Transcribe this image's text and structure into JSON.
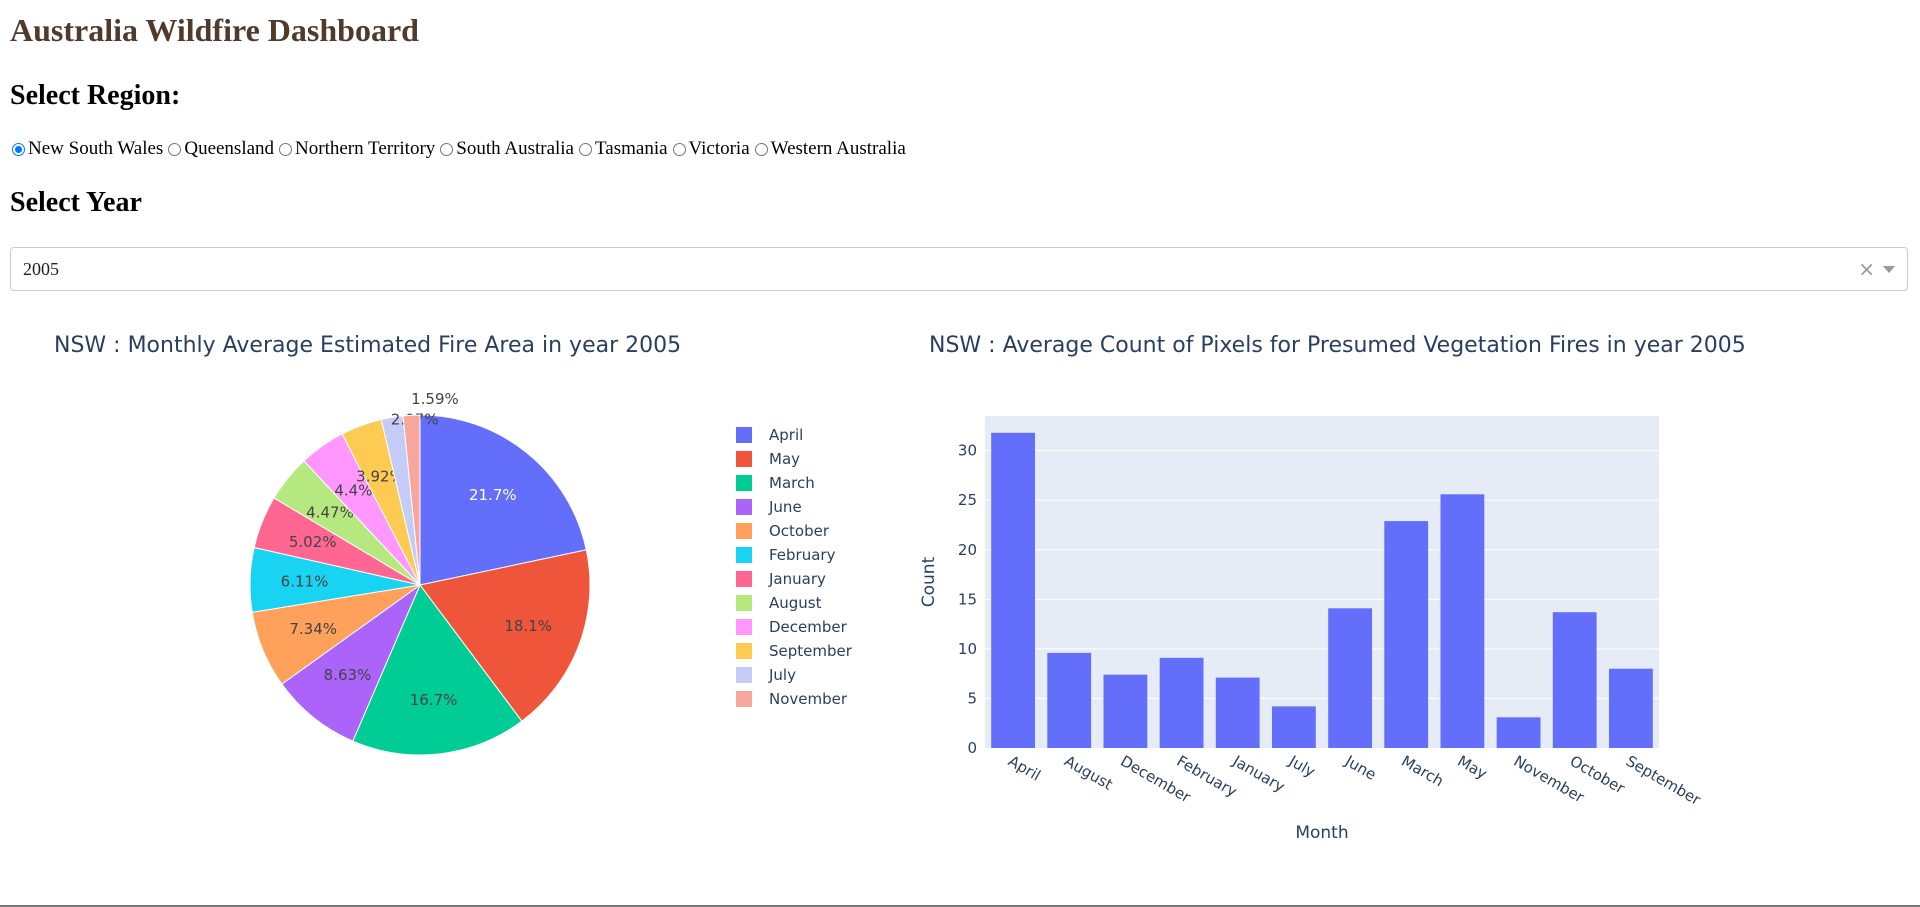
{
  "page": {
    "title": "Australia Wildfire Dashboard"
  },
  "region_section": {
    "heading": "Select Region:",
    "options": [
      "New South Wales",
      "Queensland",
      "Northern Territory",
      "South Australia",
      "Tasmania",
      "Victoria",
      "Western Australia"
    ],
    "selected": "New South Wales"
  },
  "year_section": {
    "heading": "Select Year",
    "dropdown": {
      "value": "2005",
      "clear_icon": "clear-icon",
      "caret_icon": "chevron-down-icon"
    }
  },
  "chart_data": [
    {
      "type": "pie",
      "title": "NSW : Monthly Average Estimated Fire Area in year 2005",
      "slices": [
        {
          "label": "April",
          "percent": 21.7,
          "text": "21.7%",
          "color": "#636efa"
        },
        {
          "label": "May",
          "percent": 18.1,
          "text": "18.1%",
          "color": "#ef553b"
        },
        {
          "label": "March",
          "percent": 16.7,
          "text": "16.7%",
          "color": "#00cc96"
        },
        {
          "label": "June",
          "percent": 8.63,
          "text": "8.63%",
          "color": "#ab63fa"
        },
        {
          "label": "October",
          "percent": 7.34,
          "text": "7.34%",
          "color": "#ffa15a"
        },
        {
          "label": "February",
          "percent": 6.11,
          "text": "6.11%",
          "color": "#19d3f3"
        },
        {
          "label": "January",
          "percent": 5.02,
          "text": "5.02%",
          "color": "#ff6692"
        },
        {
          "label": "August",
          "percent": 4.47,
          "text": "4.47%",
          "color": "#b6e880"
        },
        {
          "label": "December",
          "percent": 4.4,
          "text": "4.4%",
          "color": "#ff97ff"
        },
        {
          "label": "September",
          "percent": 3.92,
          "text": "3.92%",
          "color": "#fecb52"
        },
        {
          "label": "July",
          "percent": 2.07,
          "text": "2.07%",
          "color": "#c6ccf8"
        },
        {
          "label": "November",
          "percent": 1.59,
          "text": "1.59%",
          "color": "#f7a69b"
        }
      ],
      "legend_position": "right"
    },
    {
      "type": "bar",
      "title": "NSW : Average Count of Pixels for Presumed Vegetation Fires in year 2005",
      "categories": [
        "April",
        "August",
        "December",
        "February",
        "January",
        "July",
        "June",
        "March",
        "May",
        "November",
        "October",
        "September"
      ],
      "values": [
        31.8,
        9.6,
        7.4,
        9.1,
        7.1,
        4.2,
        14.1,
        22.9,
        25.6,
        3.1,
        13.7,
        8.0
      ],
      "xlabel": "Month",
      "ylabel": "Count",
      "ylim": [
        0,
        33.5
      ],
      "yticks": [
        0,
        5,
        10,
        15,
        20,
        25,
        30
      ],
      "bar_color": "#636efa",
      "plot_bg": "#e5ecf6",
      "grid": true
    }
  ]
}
